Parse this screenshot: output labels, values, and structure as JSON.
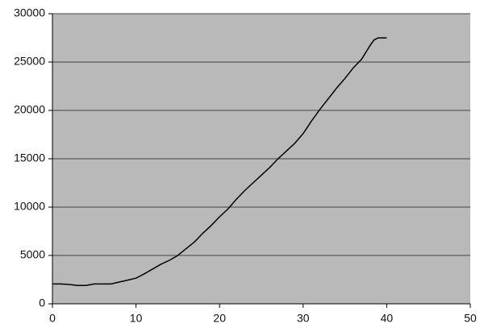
{
  "chart_data": {
    "type": "line",
    "x": [
      0,
      1,
      2,
      3,
      4,
      5,
      6,
      7,
      8,
      9,
      10,
      11,
      12,
      13,
      14,
      15,
      16,
      17,
      18,
      19,
      20,
      21,
      22,
      23,
      24,
      25,
      26,
      27,
      28,
      29,
      30,
      31,
      32,
      33,
      34,
      35,
      36,
      37,
      38,
      38.5,
      39,
      40
    ],
    "series": [
      {
        "color": "#000000",
        "values": [
          2050,
          2050,
          2000,
          1900,
          1900,
          2050,
          2050,
          2050,
          2250,
          2450,
          2650,
          3100,
          3600,
          4100,
          4500,
          5000,
          5700,
          6400,
          7300,
          8100,
          9000,
          9800,
          10800,
          11700,
          12500,
          13300,
          14100,
          15000,
          15800,
          16600,
          17600,
          18900,
          20100,
          21200,
          22300,
          23300,
          24400,
          25300,
          26700,
          27300,
          27500,
          27500
        ]
      }
    ],
    "xlim": [
      0,
      50
    ],
    "xticks": [
      0,
      10,
      20,
      30,
      40,
      50
    ],
    "ylim": [
      0,
      30000
    ],
    "yticks": [
      0,
      5000,
      10000,
      15000,
      20000,
      25000,
      30000
    ],
    "grid": true
  }
}
